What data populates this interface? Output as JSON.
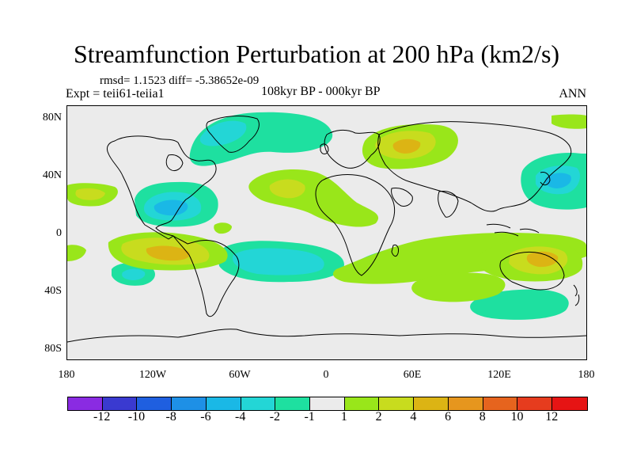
{
  "title": "Streamfunction Perturbation at 200 hPa (km2/s)",
  "stats": "rmsd= 1.1523 diff= -5.38652e-09",
  "experiment": "Expt = teii61-teiia1",
  "subtitle": "108kyr BP - 000kyr BP",
  "season": "ANN",
  "lat_labels": [
    "80N",
    "40N",
    "0",
    "40S",
    "80S"
  ],
  "lon_labels": [
    "180",
    "120W",
    "60W",
    "0",
    "60E",
    "120E",
    "180"
  ],
  "colorbar": {
    "colors": [
      "#8a2be2",
      "#3a3ad0",
      "#1f5fe0",
      "#1e90e6",
      "#1ab8e6",
      "#23d6d6",
      "#1ee0a0",
      "#ebebeb",
      "#99e61a",
      "#c8dc1e",
      "#dcb414",
      "#e6961e",
      "#e6641e",
      "#e63c1e",
      "#e61414"
    ],
    "labels": [
      "-12",
      "-10",
      "-8",
      "-6",
      "-4",
      "-2",
      "-1",
      "1",
      "2",
      "4",
      "6",
      "8",
      "10",
      "12"
    ]
  },
  "field_colors": {
    "neg1": "#1ee0a0",
    "neg2": "#23d6d6",
    "neg4": "#1ab8e6",
    "pos1": "#99e61a",
    "pos2": "#c8dc1e",
    "pos4": "#dcb414"
  }
}
